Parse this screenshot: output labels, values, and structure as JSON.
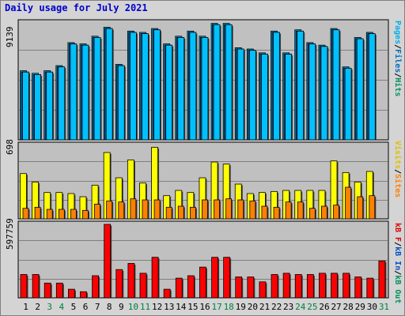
{
  "title": "Daily usage for July 2021",
  "colors": {
    "hits": "#00a0e0",
    "files": "#0070c0",
    "pages": "#00c0ff",
    "visits": "#ffff00",
    "sites": "#ff8000",
    "kbytes": "#ff0000",
    "plot_bg": "#c0c0c0",
    "weekend": "#008040"
  },
  "panels": {
    "top": {
      "ymax_label": "9139",
      "legend": [
        "Pages",
        "/",
        "Files",
        "/",
        "Hits"
      ]
    },
    "middle": {
      "ymax_label": "698",
      "legend": [
        "Visits",
        "/",
        "Sites"
      ]
    },
    "bottom": {
      "ymax_label": "597759",
      "legend": [
        "kB F",
        "/",
        "kB In",
        "/",
        "kB Out"
      ]
    }
  },
  "chart_data": [
    {
      "type": "bar",
      "panel": "top",
      "categories": [
        "1",
        "2",
        "3",
        "4",
        "5",
        "6",
        "7",
        "8",
        "9",
        "10",
        "11",
        "12",
        "13",
        "14",
        "15",
        "16",
        "17",
        "18",
        "19",
        "20",
        "21",
        "22",
        "23",
        "24",
        "25",
        "26",
        "27",
        "28",
        "29",
        "30",
        "31"
      ],
      "weekend_days": [
        "3",
        "4",
        "10",
        "11",
        "17",
        "18",
        "24",
        "25",
        "31"
      ],
      "ylim": [
        0,
        9139
      ],
      "series": [
        {
          "name": "Hits",
          "values": [
            5400,
            5200,
            5400,
            5800,
            7600,
            7500,
            8100,
            8800,
            5900,
            8500,
            8400,
            8700,
            7500,
            8100,
            8500,
            8100,
            9100,
            9100,
            7200,
            7100,
            6800,
            8500,
            6800,
            8600,
            7600,
            7400,
            8700,
            5700,
            8000,
            8400,
            0
          ]
        },
        {
          "name": "Files",
          "values": [
            5300,
            5100,
            5300,
            5700,
            7500,
            7400,
            8000,
            8700,
            5800,
            8400,
            8300,
            8600,
            7400,
            8000,
            8400,
            8000,
            9000,
            9000,
            7100,
            7000,
            6700,
            8400,
            6700,
            8500,
            7500,
            7300,
            8600,
            5600,
            7900,
            8300,
            0
          ]
        },
        {
          "name": "Pages",
          "values": [
            5300,
            5100,
            5300,
            5700,
            7500,
            7400,
            8000,
            8700,
            5800,
            8400,
            8300,
            8600,
            7400,
            8000,
            8400,
            8000,
            9000,
            9000,
            7100,
            7000,
            6700,
            8400,
            6700,
            8500,
            7500,
            7300,
            8600,
            5600,
            7900,
            8300,
            0
          ]
        }
      ]
    },
    {
      "type": "bar",
      "panel": "middle",
      "categories": [
        "1",
        "2",
        "3",
        "4",
        "5",
        "6",
        "7",
        "8",
        "9",
        "10",
        "11",
        "12",
        "13",
        "14",
        "15",
        "16",
        "17",
        "18",
        "19",
        "20",
        "21",
        "22",
        "23",
        "24",
        "25",
        "26",
        "27",
        "28",
        "29",
        "30",
        "31"
      ],
      "ylim": [
        0,
        698
      ],
      "series": [
        {
          "name": "Visits",
          "values": [
            430,
            350,
            250,
            250,
            240,
            210,
            320,
            630,
            390,
            560,
            340,
            680,
            220,
            270,
            250,
            390,
            540,
            520,
            330,
            240,
            250,
            260,
            270,
            270,
            270,
            270,
            550,
            440,
            350,
            450,
            0
          ]
        },
        {
          "name": "Sites",
          "values": [
            100,
            110,
            90,
            90,
            90,
            80,
            140,
            170,
            160,
            190,
            180,
            180,
            110,
            120,
            110,
            180,
            180,
            190,
            180,
            170,
            120,
            110,
            160,
            160,
            100,
            120,
            130,
            300,
            210,
            220,
            0
          ]
        }
      ]
    },
    {
      "type": "bar",
      "panel": "bottom",
      "categories": [
        "1",
        "2",
        "3",
        "4",
        "5",
        "6",
        "7",
        "8",
        "9",
        "10",
        "11",
        "12",
        "13",
        "14",
        "15",
        "16",
        "17",
        "18",
        "19",
        "20",
        "21",
        "22",
        "23",
        "24",
        "25",
        "26",
        "27",
        "28",
        "29",
        "30",
        "31"
      ],
      "ylim": [
        0,
        597759
      ],
      "series": [
        {
          "name": "kB F",
          "values": [
            190000,
            190000,
            120000,
            120000,
            70000,
            50000,
            180000,
            597759,
            230000,
            280000,
            200000,
            330000,
            70000,
            160000,
            180000,
            250000,
            330000,
            330000,
            170000,
            170000,
            130000,
            190000,
            200000,
            190000,
            190000,
            200000,
            200000,
            200000,
            170000,
            160000,
            300000
          ]
        }
      ]
    }
  ]
}
